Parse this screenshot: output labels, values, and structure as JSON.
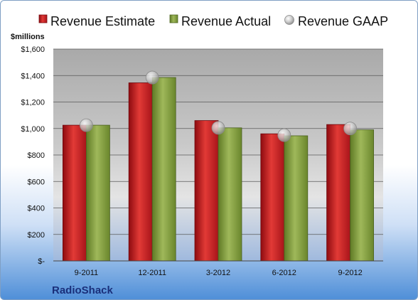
{
  "chart_data": {
    "type": "bar",
    "categories": [
      "9-2011",
      "12-2011",
      "3-2012",
      "6-2012",
      "9-2012"
    ],
    "series": [
      {
        "name": "Revenue Estimate",
        "values": [
          1025,
          1345,
          1060,
          960,
          1030
        ],
        "color": "#c0141c"
      },
      {
        "name": "Revenue Actual",
        "values": [
          1025,
          1385,
          1005,
          945,
          990
        ],
        "color": "#7f9a3a"
      }
    ],
    "markers": {
      "name": "Revenue GAAP",
      "values": [
        1025,
        1385,
        1005,
        950,
        1000
      ],
      "color": "#b8b8b8"
    },
    "unit_label": "$millions",
    "yticks": [
      "$-",
      "$200",
      "$400",
      "$600",
      "$800",
      "$1,000",
      "$1,200",
      "$1,400",
      "$1,600"
    ],
    "ylim": [
      0,
      1600
    ],
    "grid": true,
    "legend_position": "top",
    "footer_label": "RadioShack"
  }
}
